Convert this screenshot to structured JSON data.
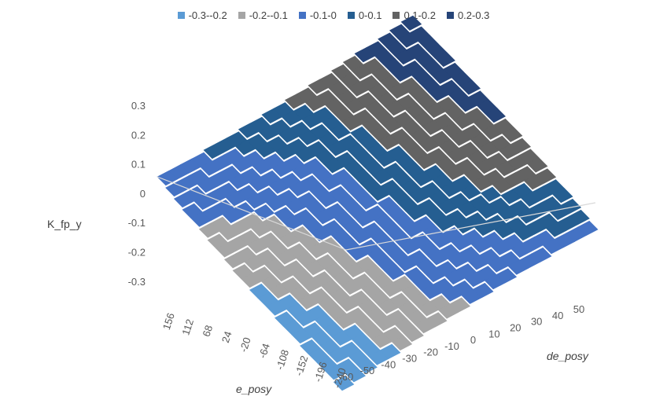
{
  "chart_data": {
    "type": "surface",
    "title": "",
    "legend": {
      "position": "top",
      "entries": [
        {
          "label": "-0.3--0.2",
          "color": "#5B9BD5"
        },
        {
          "label": "-0.2--0.1",
          "color": "#A5A5A5"
        },
        {
          "label": "-0.1-0",
          "color": "#4472C4"
        },
        {
          "label": "0-0.1",
          "color": "#255E91"
        },
        {
          "label": "0.1-0.2",
          "color": "#636363"
        },
        {
          "label": "0.2-0.3",
          "color": "#264478"
        }
      ]
    },
    "z_axis": {
      "label": "K_fp_y",
      "ticks": [
        "0.3",
        "0.2",
        "0.1",
        "0",
        "-0.1",
        "-0.2",
        "-0.3"
      ],
      "range": [
        -0.3,
        0.3
      ]
    },
    "x_axis": {
      "label": "de_posy",
      "ticks": [
        "-60",
        "-50",
        "-40",
        "-30",
        "-20",
        "-10",
        "0",
        "10",
        "20",
        "30",
        "40",
        "50"
      ],
      "range": [
        -60,
        60
      ]
    },
    "y_axis": {
      "label": "e_posy",
      "ticks": [
        "-240",
        "-196",
        "-152",
        "-108",
        "-64",
        "-20",
        "24",
        "68",
        "112",
        "156"
      ],
      "range": [
        -240,
        200
      ]
    },
    "surface_description": "stepped saddle surface banded by value ranges",
    "bands_along_front_to_back": [
      "-0.3--0.2",
      "-0.2--0.1",
      "-0.1-0",
      "0-0.1",
      "0.1-0.2",
      "0.2-0.3"
    ]
  }
}
